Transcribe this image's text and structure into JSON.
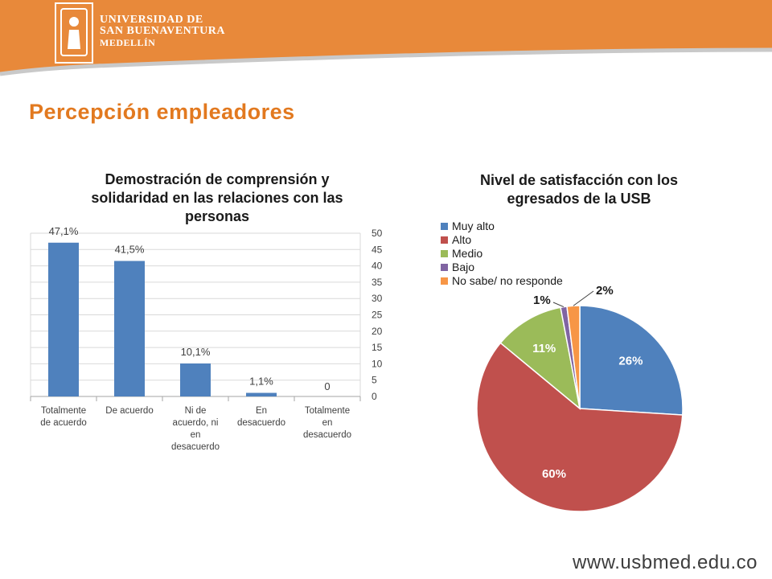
{
  "header": {
    "logo_line1": "UNIVERSIDAD DE",
    "logo_line2": "SAN BUENAVENTURA",
    "logo_line3": "MEDELLÍN"
  },
  "page_title": "Percepción empleadores",
  "footer_url": "www.usbmed.edu.co",
  "colors": {
    "accent": "#e2791f",
    "bar": "#4f81bd",
    "slices": [
      "#4f81bd",
      "#c0504d",
      "#9bbb59",
      "#8064a2",
      "#f79646"
    ]
  },
  "chart_data": [
    {
      "type": "bar",
      "title": "Demostración  de comprensión y solidaridad en las relaciones con las personas",
      "categories": [
        [
          "Totalmente",
          "de acuerdo"
        ],
        [
          "De acuerdo"
        ],
        [
          "Ni de",
          "acuerdo, ni",
          "en",
          "desacuerdo"
        ],
        [
          "En",
          "desacuerdo"
        ],
        [
          "Totalmente",
          "en",
          "desacuerdo"
        ]
      ],
      "values": [
        47.1,
        41.5,
        10.1,
        1.1,
        0
      ],
      "data_labels": [
        "47,1%",
        "41,5%",
        "10,1%",
        "1,1%",
        "0"
      ],
      "ylim": [
        0,
        50
      ],
      "yticks": [
        0,
        5,
        10,
        15,
        20,
        25,
        30,
        35,
        40,
        45,
        50
      ],
      "y_axis_side": "right",
      "grid": true,
      "legend": "none"
    },
    {
      "type": "pie",
      "title": "Nivel de satisfacción con los egresados de la USB",
      "labels": [
        "Muy alto",
        "Alto",
        "Medio",
        "Bajo",
        "No sabe/ no responde"
      ],
      "values": [
        26,
        60,
        11,
        1,
        2
      ],
      "data_labels": [
        "26%",
        "60%",
        "11%",
        "1%",
        "2%"
      ],
      "legend": "top-left"
    }
  ]
}
